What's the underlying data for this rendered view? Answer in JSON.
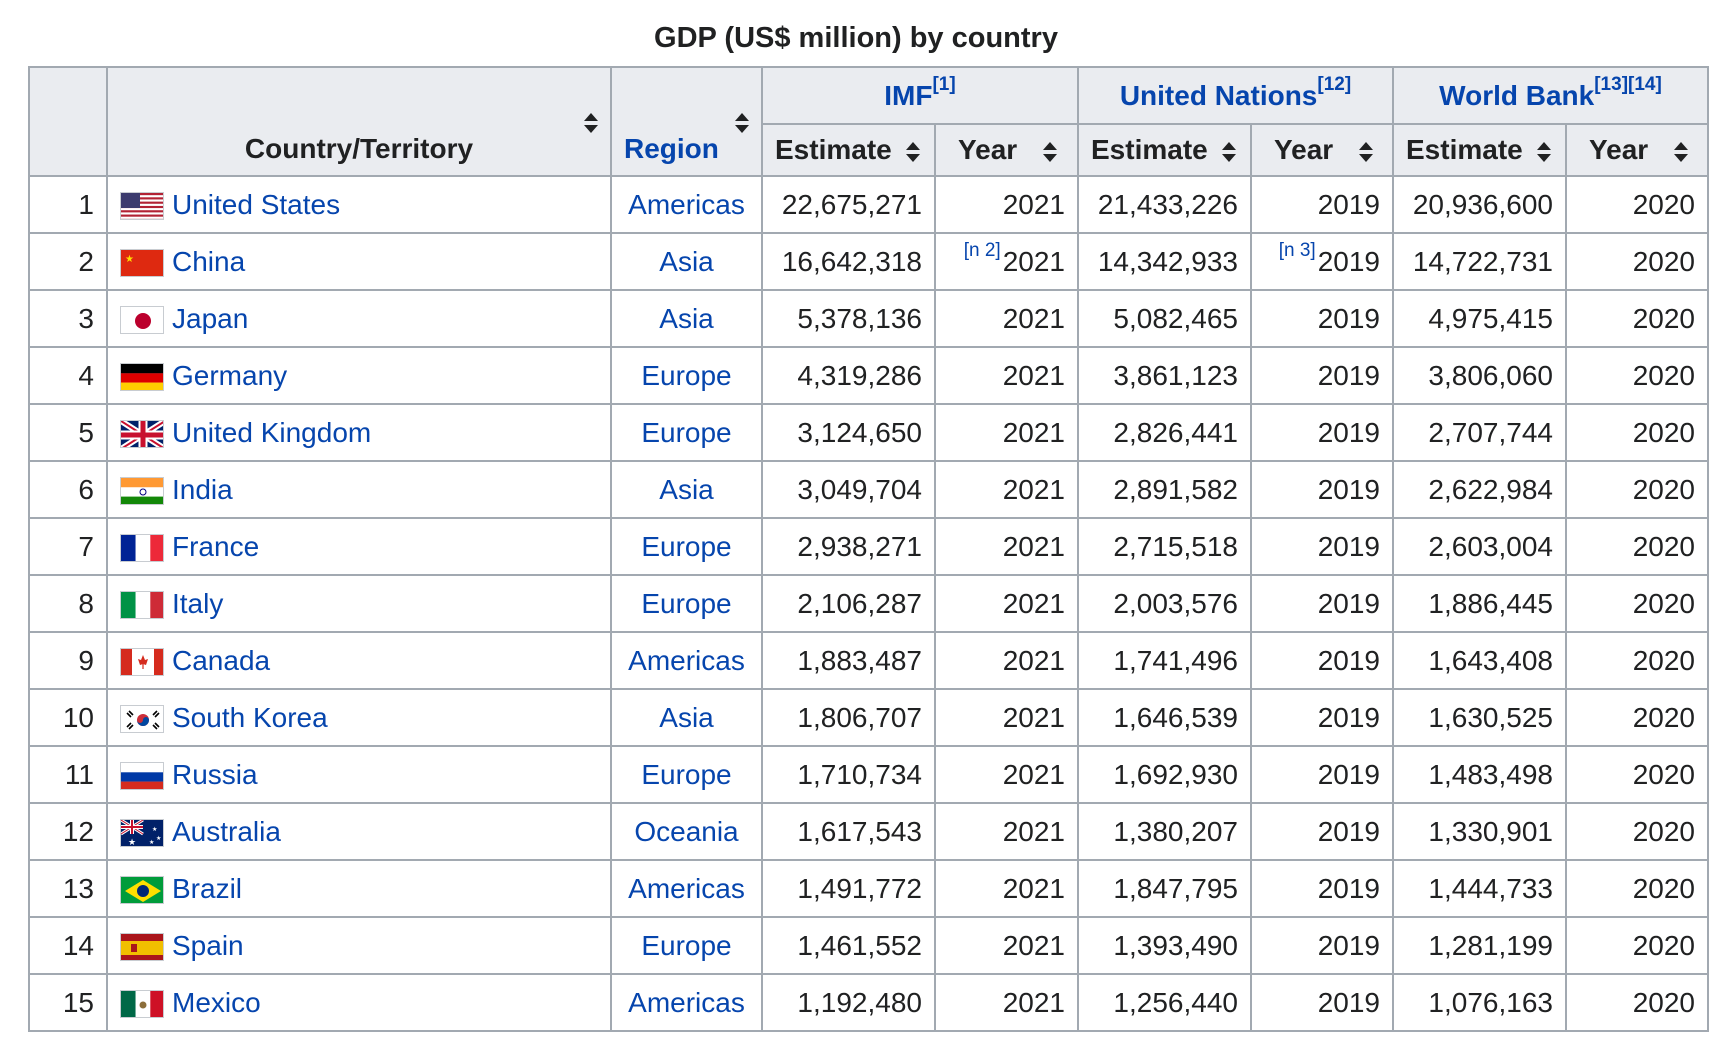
{
  "caption": "GDP (US$ million) by country",
  "headers": {
    "country": "Country/Territory",
    "region": "Region",
    "groups": [
      {
        "label": "IMF",
        "refs": "[1]"
      },
      {
        "label": "United Nations",
        "refs": "[12]"
      },
      {
        "label": "World Bank",
        "refs": "[13][14]"
      }
    ],
    "estimate": "Estimate",
    "year": "Year"
  },
  "rows": [
    {
      "rank": "1",
      "flag": "us",
      "country": "United States",
      "region": "Americas",
      "imf_est": "22,675,271",
      "imf_year": "2021",
      "imf_note": "",
      "un_est": "21,433,226",
      "un_year": "2019",
      "un_note": "",
      "wb_est": "20,936,600",
      "wb_year": "2020"
    },
    {
      "rank": "2",
      "flag": "cn",
      "country": "China",
      "region": "Asia",
      "imf_est": "16,642,318",
      "imf_year": "2021",
      "imf_note": "[n 2]",
      "un_est": "14,342,933",
      "un_year": "2019",
      "un_note": "[n 3]",
      "wb_est": "14,722,731",
      "wb_year": "2020"
    },
    {
      "rank": "3",
      "flag": "jp",
      "country": "Japan",
      "region": "Asia",
      "imf_est": "5,378,136",
      "imf_year": "2021",
      "imf_note": "",
      "un_est": "5,082,465",
      "un_year": "2019",
      "un_note": "",
      "wb_est": "4,975,415",
      "wb_year": "2020"
    },
    {
      "rank": "4",
      "flag": "de",
      "country": "Germany",
      "region": "Europe",
      "imf_est": "4,319,286",
      "imf_year": "2021",
      "imf_note": "",
      "un_est": "3,861,123",
      "un_year": "2019",
      "un_note": "",
      "wb_est": "3,806,060",
      "wb_year": "2020"
    },
    {
      "rank": "5",
      "flag": "gb",
      "country": "United Kingdom",
      "region": "Europe",
      "imf_est": "3,124,650",
      "imf_year": "2021",
      "imf_note": "",
      "un_est": "2,826,441",
      "un_year": "2019",
      "un_note": "",
      "wb_est": "2,707,744",
      "wb_year": "2020"
    },
    {
      "rank": "6",
      "flag": "in",
      "country": "India",
      "region": "Asia",
      "imf_est": "3,049,704",
      "imf_year": "2021",
      "imf_note": "",
      "un_est": "2,891,582",
      "un_year": "2019",
      "un_note": "",
      "wb_est": "2,622,984",
      "wb_year": "2020"
    },
    {
      "rank": "7",
      "flag": "fr",
      "country": "France",
      "region": "Europe",
      "imf_est": "2,938,271",
      "imf_year": "2021",
      "imf_note": "",
      "un_est": "2,715,518",
      "un_year": "2019",
      "un_note": "",
      "wb_est": "2,603,004",
      "wb_year": "2020"
    },
    {
      "rank": "8",
      "flag": "it",
      "country": "Italy",
      "region": "Europe",
      "imf_est": "2,106,287",
      "imf_year": "2021",
      "imf_note": "",
      "un_est": "2,003,576",
      "un_year": "2019",
      "un_note": "",
      "wb_est": "1,886,445",
      "wb_year": "2020"
    },
    {
      "rank": "9",
      "flag": "ca",
      "country": "Canada",
      "region": "Americas",
      "imf_est": "1,883,487",
      "imf_year": "2021",
      "imf_note": "",
      "un_est": "1,741,496",
      "un_year": "2019",
      "un_note": "",
      "wb_est": "1,643,408",
      "wb_year": "2020"
    },
    {
      "rank": "10",
      "flag": "kr",
      "country": "South Korea",
      "region": "Asia",
      "imf_est": "1,806,707",
      "imf_year": "2021",
      "imf_note": "",
      "un_est": "1,646,539",
      "un_year": "2019",
      "un_note": "",
      "wb_est": "1,630,525",
      "wb_year": "2020"
    },
    {
      "rank": "11",
      "flag": "ru",
      "country": "Russia",
      "region": "Europe",
      "imf_est": "1,710,734",
      "imf_year": "2021",
      "imf_note": "",
      "un_est": "1,692,930",
      "un_year": "2019",
      "un_note": "",
      "wb_est": "1,483,498",
      "wb_year": "2020"
    },
    {
      "rank": "12",
      "flag": "au",
      "country": "Australia",
      "region": "Oceania",
      "imf_est": "1,617,543",
      "imf_year": "2021",
      "imf_note": "",
      "un_est": "1,380,207",
      "un_year": "2019",
      "un_note": "",
      "wb_est": "1,330,901",
      "wb_year": "2020"
    },
    {
      "rank": "13",
      "flag": "br",
      "country": "Brazil",
      "region": "Americas",
      "imf_est": "1,491,772",
      "imf_year": "2021",
      "imf_note": "",
      "un_est": "1,847,795",
      "un_year": "2019",
      "un_note": "",
      "wb_est": "1,444,733",
      "wb_year": "2020"
    },
    {
      "rank": "14",
      "flag": "es",
      "country": "Spain",
      "region": "Europe",
      "imf_est": "1,461,552",
      "imf_year": "2021",
      "imf_note": "",
      "un_est": "1,393,490",
      "un_year": "2019",
      "un_note": "",
      "wb_est": "1,281,199",
      "wb_year": "2020"
    },
    {
      "rank": "15",
      "flag": "mx",
      "country": "Mexico",
      "region": "Americas",
      "imf_est": "1,192,480",
      "imf_year": "2021",
      "imf_note": "",
      "un_est": "1,256,440",
      "un_year": "2019",
      "un_note": "",
      "wb_est": "1,076,163",
      "wb_year": "2020"
    }
  ]
}
